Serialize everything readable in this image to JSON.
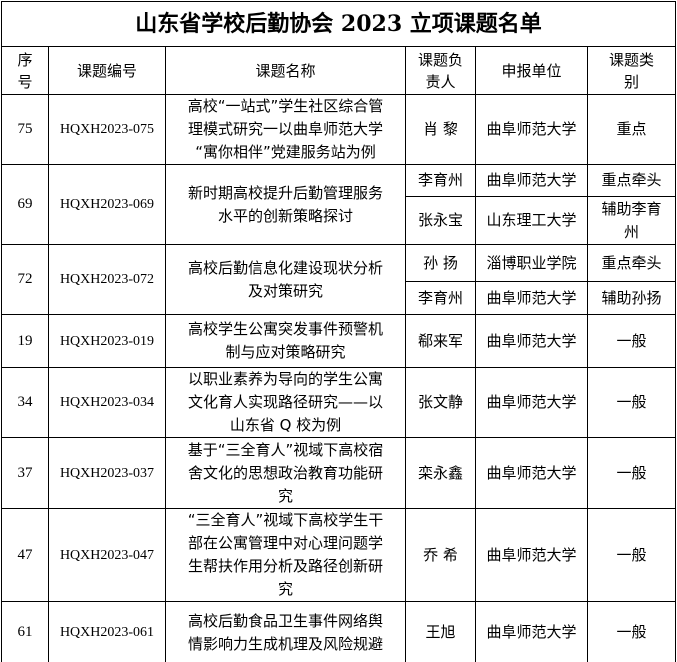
{
  "title": "山东省学校后勤协会 2023 立项课题名单",
  "headers": [
    "序号",
    "课题编号",
    "课题名称",
    "课题负责人",
    "申报单位",
    "课题类别"
  ],
  "header_lines": [
    [
      "序",
      "号"
    ],
    [
      "课题编号"
    ],
    [
      "课题名称"
    ],
    [
      "课题负",
      "责人"
    ],
    [
      "申报单位"
    ],
    [
      "课题类",
      "别"
    ]
  ],
  "rows": [
    {
      "no": "75",
      "code": "HQXH2023-075",
      "name": [
        "高校“一站式”学生社区综合管",
        "理模式研究一以曲阜师范大学",
        "“寓你相伴”党建服务站为例"
      ],
      "members": [
        {
          "person": "肖  黎",
          "unit": "曲阜师范大学",
          "type": [
            "重点"
          ]
        }
      ]
    },
    {
      "no": "69",
      "code": "HQXH2023-069",
      "name": [
        "新时期高校提升后勤管理服务",
        "水平的创新策略探讨"
      ],
      "members": [
        {
          "person": "李育州",
          "unit": "曲阜师范大学",
          "type": [
            "重点牵头"
          ]
        },
        {
          "person": "张永宝",
          "unit": "山东理工大学",
          "type": [
            "辅助李育",
            "州"
          ]
        }
      ]
    },
    {
      "no": "72",
      "code": "HQXH2023-072",
      "name": [
        "高校后勤信息化建设现状分析",
        "及对策研究"
      ],
      "members": [
        {
          "person": "孙  扬",
          "unit": "淄博职业学院",
          "type": [
            "重点牵头"
          ]
        },
        {
          "person": "李育州",
          "unit": "曲阜师范大学",
          "type": [
            "辅助孙扬"
          ]
        }
      ]
    },
    {
      "no": "19",
      "code": "HQXH2023-019",
      "name": [
        "高校学生公寓突发事件预警机",
        "制与应对策略研究"
      ],
      "members": [
        {
          "person": "郗来军",
          "unit": "曲阜师范大学",
          "type": [
            "一般"
          ]
        }
      ]
    },
    {
      "no": "34",
      "code": "HQXH2023-034",
      "name": [
        "以职业素养为导向的学生公寓",
        "文化育人实现路径研究——以",
        "山东省 Q 校为例"
      ],
      "members": [
        {
          "person": "张文静",
          "unit": "曲阜师范大学",
          "type": [
            "一般"
          ]
        }
      ]
    },
    {
      "no": "37",
      "code": "HQXH2023-037",
      "name": [
        "基于“三全育人”视域下高校宿",
        "舍文化的思想政治教育功能研",
        "究"
      ],
      "members": [
        {
          "person": "栾永鑫",
          "unit": "曲阜师范大学",
          "type": [
            "一般"
          ]
        }
      ]
    },
    {
      "no": "47",
      "code": "HQXH2023-047",
      "name": [
        "“三全育人”视域下高校学生干",
        "部在公寓管理中对心理问题学",
        "生帮扶作用分析及路径创新研",
        "究"
      ],
      "members": [
        {
          "person": "乔  希",
          "unit": "曲阜师范大学",
          "type": [
            "一般"
          ]
        }
      ]
    },
    {
      "no": "61",
      "code": "HQXH2023-061",
      "name": [
        "高校后勤食品卫生事件网络舆",
        "情影响力生成机理及风险规避"
      ],
      "members": [
        {
          "person": "王旭",
          "unit": "曲阜师范大学",
          "type": [
            "一般"
          ]
        }
      ]
    }
  ]
}
